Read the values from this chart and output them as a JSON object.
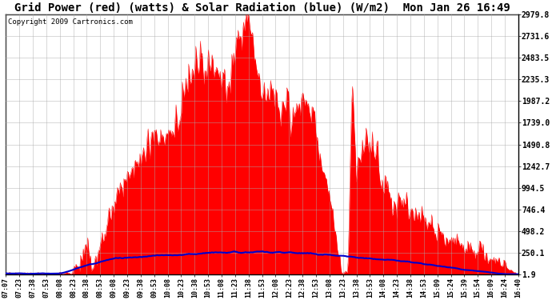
{
  "title": "Grid Power (red) (watts) & Solar Radiation (blue) (W/m2)  Mon Jan 26 16:49",
  "copyright": "Copyright 2009 Cartronics.com",
  "y_ticks": [
    1.9,
    250.1,
    498.2,
    746.4,
    994.5,
    1242.7,
    1490.8,
    1739.0,
    1987.2,
    2235.3,
    2483.5,
    2731.6,
    2979.8
  ],
  "ymin": 1.9,
  "ymax": 2979.8,
  "x_labels": [
    "07:07",
    "07:23",
    "07:38",
    "07:53",
    "08:08",
    "08:23",
    "08:38",
    "08:53",
    "09:08",
    "09:23",
    "09:38",
    "09:53",
    "10:08",
    "10:23",
    "10:38",
    "10:53",
    "11:08",
    "11:23",
    "11:38",
    "11:53",
    "12:08",
    "12:23",
    "12:38",
    "12:53",
    "13:08",
    "13:23",
    "13:38",
    "13:53",
    "14:08",
    "14:23",
    "14:38",
    "14:53",
    "15:09",
    "15:24",
    "15:39",
    "15:54",
    "16:09",
    "16:24",
    "16:40"
  ],
  "bg_color": "#ffffff",
  "grid_color": "#aaaaaa",
  "red_color": "#ff0000",
  "blue_color": "#0000cc",
  "title_fontsize": 10,
  "copyright_fontsize": 6.5,
  "figsize": [
    6.9,
    3.75
  ],
  "dpi": 100
}
